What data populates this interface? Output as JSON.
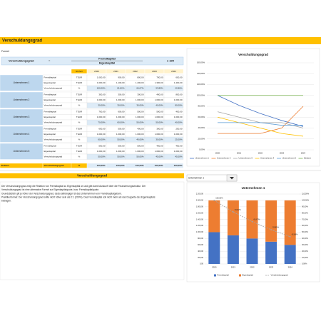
{
  "header": {
    "title": "Verschuldungsgrad"
  },
  "formula": {
    "label": "Formel",
    "name": "Verschuldungsgrad",
    "equals": "=",
    "numerator": "Fremdkapital",
    "denominator": "Eigenkapital",
    "times": "x 100"
  },
  "table": {
    "columns": [
      "Einheit",
      "2020",
      "2021",
      "2022",
      "2023",
      "2024"
    ],
    "groups": [
      {
        "name": "Unternehmen 1",
        "rows": [
          [
            "Fremdkapital",
            "TEUR",
            "1.000,00",
            "900,00",
            "800,00",
            "700,00",
            "600,00"
          ],
          [
            "Eigenkapital",
            "TEUR",
            "1.000,00",
            "1.100,00",
            "1.200,00",
            "1.300,00",
            "1.400,00"
          ],
          [
            "Verschuldungsgrad",
            "%",
            "100,00%",
            "81,82%",
            "66,67%",
            "53,85%",
            "42,86%"
          ]
        ]
      },
      {
        "name": "Unternehmen 2",
        "rows": [
          [
            "Fremdkapital",
            "TEUR",
            "300,00",
            "300,00",
            "300,00",
            "400,00",
            "800,00"
          ],
          [
            "Eigenkapital",
            "TEUR",
            "1.000,00",
            "1.000,00",
            "1.000,00",
            "1.000,00",
            "1.000,00"
          ],
          [
            "Verschuldungsgrad",
            "%",
            "30,00%",
            "30,00%",
            "30,00%",
            "40,00%",
            "80,00%"
          ]
        ]
      },
      {
        "name": "Unternehmen 3",
        "rows": [
          [
            "Fremdkapital",
            "TEUR",
            "700,00",
            "600,00",
            "500,00",
            "500,00",
            "400,00"
          ],
          [
            "Eigenkapital",
            "TEUR",
            "1.000,00",
            "1.000,00",
            "1.000,00",
            "1.000,00",
            "1.000,00"
          ],
          [
            "Verschuldungsgrad",
            "%",
            "70,00%",
            "60,00%",
            "50,00%",
            "50,00%",
            "40,00%"
          ]
        ]
      },
      {
        "name": "Unternehmen 4",
        "rows": [
          [
            "Fremdkapital",
            "TEUR",
            "600,00",
            "500,00",
            "400,00",
            "300,00",
            "250,00"
          ],
          [
            "Eigenkapital",
            "TEUR",
            "1.000,00",
            "1.000,00",
            "1.000,00",
            "1.000,00",
            "1.000,00"
          ],
          [
            "Verschuldungsgrad",
            "%",
            "60,00%",
            "50,00%",
            "40,00%",
            "30,00%",
            "25,00%"
          ]
        ]
      },
      {
        "name": "Unternehmen 5",
        "rows": [
          [
            "Fremdkapital",
            "TEUR",
            "500,00",
            "500,00",
            "500,00",
            "450,00",
            "450,00"
          ],
          [
            "Eigenkapital",
            "TEUR",
            "1.000,00",
            "1.000,00",
            "1.000,00",
            "1.000,00",
            "1.000,00"
          ],
          [
            "Verschuldungsgrad",
            "%",
            "50,00%",
            "50,00%",
            "50,00%",
            "45,00%",
            "45,00%"
          ]
        ]
      }
    ],
    "target": [
      "Zielwert",
      "Verschuldungsgrad",
      "%",
      "100,00%",
      "100,00%",
      "100,00%",
      "100,00%",
      "100,00%"
    ]
  },
  "chart_data": [
    {
      "type": "line",
      "title": "Verschuldungsgrad",
      "categories": [
        "2020",
        "2021",
        "2022",
        "2023",
        "2024"
      ],
      "series": [
        {
          "name": "Unternehmen 1",
          "color": "#4472c4",
          "values": [
            100,
            81.82,
            66.67,
            53.85,
            42.86
          ]
        },
        {
          "name": "Unternehmen 2",
          "color": "#ed7d31",
          "values": [
            30,
            30,
            30,
            40,
            80
          ]
        },
        {
          "name": "Unternehmen 3",
          "color": "#a5a5a5",
          "values": [
            70,
            60,
            50,
            50,
            40
          ]
        },
        {
          "name": "Unternehmen 4",
          "color": "#ffc000",
          "values": [
            60,
            50,
            40,
            30,
            25
          ]
        },
        {
          "name": "Unternehmen 5",
          "color": "#5b9bd5",
          "values": [
            50,
            50,
            50,
            45,
            45
          ]
        },
        {
          "name": "Zielwert",
          "color": "#70ad47",
          "values": [
            100,
            100,
            100,
            100,
            100
          ]
        }
      ],
      "ylim": [
        0,
        160
      ],
      "yticks": [
        {
          "value": 0,
          "label": "0,00%"
        },
        {
          "value": 20,
          "label": "20,00%"
        },
        {
          "value": 40,
          "label": "40,00%"
        },
        {
          "value": 60,
          "label": "60,00%"
        },
        {
          "value": 80,
          "label": "80,00%"
        },
        {
          "value": 100,
          "label": "100,00%"
        },
        {
          "value": 120,
          "label": "120,00%"
        },
        {
          "value": 140,
          "label": "140,00%"
        },
        {
          "value": 160,
          "label": "160,00%"
        }
      ],
      "grid": true,
      "legend": "bottom"
    },
    {
      "type": "bar",
      "title": "Unternehmen 1",
      "stacked": true,
      "categories": [
        "2020",
        "2021",
        "2022",
        "2023",
        "2024"
      ],
      "series": [
        {
          "name": "Fremdkapital",
          "color": "#4472c4",
          "values": [
            1000,
            900,
            800,
            700,
            600
          ]
        },
        {
          "name": "Eigenkapital",
          "color": "#ed7d31",
          "values": [
            1000,
            1100,
            1200,
            1300,
            1400
          ]
        },
        {
          "name": "Verschuldungsgrad",
          "color": "#a5a5a5",
          "axis": "y2",
          "values": [
            100,
            81.82,
            66.67,
            53.85,
            42.86
          ],
          "value_labels": [
            "100,00%",
            "81,82%",
            "66,67%",
            "53,85%",
            "42,86%"
          ]
        }
      ],
      "ylim": [
        0,
        2200
      ],
      "yticks": [
        {
          "value": 0,
          "label": "0,00"
        },
        {
          "value": 200,
          "label": "200,00"
        },
        {
          "value": 400,
          "label": "400,00"
        },
        {
          "value": 600,
          "label": "600,00"
        },
        {
          "value": 800,
          "label": "800,00"
        },
        {
          "value": 1000,
          "label": "1.000,00"
        },
        {
          "value": 1200,
          "label": "1.200,00"
        },
        {
          "value": 1400,
          "label": "1.400,00"
        },
        {
          "value": 1600,
          "label": "1.600,00"
        },
        {
          "value": 1800,
          "label": "1.800,00"
        },
        {
          "value": 2000,
          "label": "2.000,00"
        },
        {
          "value": 2200,
          "label": "2.200,00"
        }
      ],
      "y2lim": [
        0,
        110
      ],
      "y2ticks": [
        {
          "value": 0,
          "label": "0,00%"
        },
        {
          "value": 10,
          "label": "10,00%"
        },
        {
          "value": 20,
          "label": "20,00%"
        },
        {
          "value": 30,
          "label": "30,00%"
        },
        {
          "value": 40,
          "label": "40,00%"
        },
        {
          "value": 50,
          "label": "50,00%"
        },
        {
          "value": 60,
          "label": "60,00%"
        },
        {
          "value": 70,
          "label": "70,00%"
        },
        {
          "value": 80,
          "label": "80,00%"
        },
        {
          "value": 90,
          "label": "90,00%"
        },
        {
          "value": 100,
          "label": "100,00%"
        },
        {
          "value": 110,
          "label": "110,00%"
        }
      ],
      "grid": true,
      "legend": "bottom"
    }
  ],
  "selector": {
    "value": "Unternehmen 1"
  },
  "note": {
    "title": "Verschuldungsgrad",
    "lines": [
      "Der Verschuldungsgrad zeigt die Relation von Fremdkapital zu Eigenkapital an und gibt damit Auskunft über die Finanzierungsstruktur. Der",
      "Verschuldungsgrad ist eine alternative Formel zur Eigenkapitalquote, bzw. Fremdkapitalquote.",
      "Grundsätzlich gilt je höher der Verschuldungsgrad, desto abhängiger ist das Unternehmen von Fremdkapitalgebern.",
      "Praktikerformel: Der Verschuldungsgrad sollte nicht höher sein als 2:1 (200%). Das Fremdkapital soll nicht mehr als das Doppelte des Eigenkapitals",
      "betragen."
    ]
  }
}
